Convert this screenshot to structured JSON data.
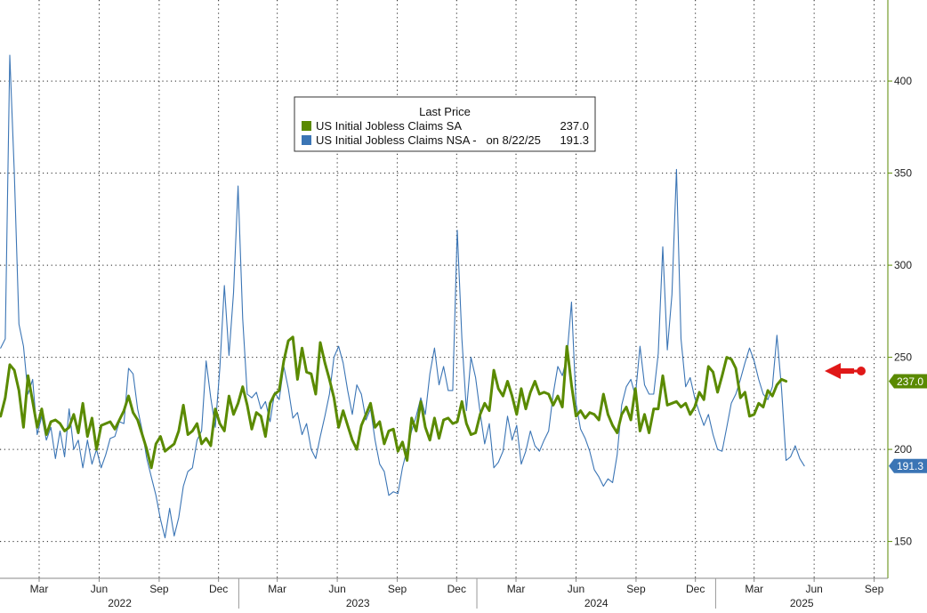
{
  "chart_data": {
    "type": "line",
    "legend": {
      "title": "Last Price",
      "placement": "top-center",
      "entries": [
        {
          "label": "US Initial Jobless Claims SA",
          "value": "237.0"
        },
        {
          "label": "US Initial Jobless Claims NSA -   on 8/22/25",
          "value": "191.3"
        }
      ]
    },
    "y_axis": {
      "position": "right",
      "min": 130,
      "max": 444,
      "ticks": [
        150,
        200,
        250,
        300,
        350,
        400
      ]
    },
    "x_axis": {
      "start": "2021-12-31",
      "end": "2025-09-22",
      "month_ticks": [
        {
          "date": "2022-03-01",
          "label": "Mar"
        },
        {
          "date": "2022-06-01",
          "label": "Jun"
        },
        {
          "date": "2022-09-01",
          "label": "Sep"
        },
        {
          "date": "2022-12-01",
          "label": "Dec"
        },
        {
          "date": "2023-03-01",
          "label": "Mar"
        },
        {
          "date": "2023-06-01",
          "label": "Jun"
        },
        {
          "date": "2023-09-01",
          "label": "Sep"
        },
        {
          "date": "2023-12-01",
          "label": "Dec"
        },
        {
          "date": "2024-03-01",
          "label": "Mar"
        },
        {
          "date": "2024-06-01",
          "label": "Jun"
        },
        {
          "date": "2024-09-01",
          "label": "Sep"
        },
        {
          "date": "2024-12-01",
          "label": "Dec"
        },
        {
          "date": "2025-03-01",
          "label": "Mar"
        },
        {
          "date": "2025-06-01",
          "label": "Jun"
        },
        {
          "date": "2025-09-01",
          "label": "Sep"
        }
      ],
      "years": [
        {
          "label": "2022",
          "from": "2022-01-01",
          "to": "2023-01-01"
        },
        {
          "label": "2023",
          "from": "2023-01-01",
          "to": "2024-01-01"
        },
        {
          "label": "2024",
          "from": "2024-01-01",
          "to": "2025-01-01"
        },
        {
          "label": "2025",
          "from": "2025-01-01",
          "to": "2025-09-22"
        }
      ]
    },
    "grid": true,
    "start_date": "2022-01-01",
    "step_days": 7,
    "series": [
      {
        "name": "US Initial Jobless Claims SA",
        "color": "#5a8a00",
        "last_label": "237.0",
        "values": [
          218,
          228,
          246,
          243,
          232,
          212,
          240,
          226,
          212,
          222,
          208,
          215,
          216,
          214,
          210,
          212,
          219,
          209,
          225,
          207,
          217,
          200,
          213,
          214,
          215,
          211,
          216,
          221,
          229,
          220,
          216,
          208,
          200,
          190,
          203,
          207,
          199,
          201,
          203,
          210,
          224,
          208,
          210,
          214,
          203,
          206,
          202,
          222,
          214,
          210,
          229,
          219,
          225,
          234,
          224,
          211,
          220,
          218,
          207,
          225,
          230,
          232,
          248,
          259,
          261,
          238,
          255,
          242,
          241,
          230,
          258,
          247,
          238,
          228,
          212,
          221,
          213,
          205,
          200,
          213,
          219,
          225,
          212,
          215,
          203,
          210,
          211,
          199,
          204,
          194,
          217,
          210,
          226,
          212,
          205,
          217,
          206,
          216,
          217,
          214,
          215,
          226,
          214,
          208,
          209,
          219,
          225,
          221,
          243,
          233,
          229,
          237,
          229,
          219,
          233,
          222,
          231,
          237,
          230,
          231,
          230,
          224,
          229,
          223,
          256,
          235,
          218,
          221,
          217,
          220,
          219,
          216,
          230,
          219,
          213,
          209,
          219,
          223,
          216,
          233,
          210,
          219,
          209,
          222,
          222,
          240,
          224,
          225,
          226,
          223,
          225,
          219,
          223,
          231,
          227,
          245,
          242,
          231,
          240,
          250,
          249,
          244,
          228,
          231,
          218,
          219,
          225,
          223,
          232,
          229,
          235,
          238,
          237
        ]
      },
      {
        "name": "US Initial Jobless Claims NSA",
        "color": "#3b75b5",
        "last_label": "191.3",
        "values": [
          255,
          260,
          414,
          350,
          268,
          256,
          230,
          238,
          208,
          218,
          205,
          212,
          195,
          210,
          196,
          222,
          200,
          205,
          190,
          205,
          192,
          200,
          190,
          197,
          206,
          207,
          215,
          214,
          244,
          241,
          222,
          210,
          195,
          185,
          175,
          162,
          152,
          168,
          153,
          163,
          180,
          188,
          190,
          205,
          210,
          248,
          228,
          212,
          244,
          289,
          251,
          285,
          343,
          271,
          230,
          228,
          231,
          222,
          226,
          215,
          231,
          227,
          245,
          233,
          217,
          220,
          208,
          214,
          200,
          195,
          207,
          218,
          230,
          250,
          256,
          247,
          232,
          219,
          235,
          230,
          216,
          222,
          205,
          192,
          188,
          175,
          177,
          176,
          190,
          200,
          210,
          218,
          228,
          219,
          241,
          255,
          235,
          245,
          232,
          232,
          319,
          260,
          221,
          250,
          239,
          220,
          203,
          214,
          190,
          193,
          199,
          218,
          205,
          213,
          192,
          199,
          210,
          202,
          199,
          205,
          210,
          230,
          245,
          240,
          250,
          280,
          225,
          211,
          206,
          199,
          189,
          185,
          180,
          184,
          182,
          197,
          224,
          234,
          238,
          229,
          256,
          235,
          230,
          230,
          252,
          310,
          254,
          284,
          352,
          260,
          234,
          239,
          228,
          220,
          213,
          219,
          208,
          200,
          199,
          212,
          225,
          230,
          238,
          247,
          255,
          248,
          238,
          230,
          227,
          234,
          262,
          233,
          194,
          196,
          202,
          195,
          191
        ]
      }
    ],
    "annotation": "red-arrow-marker"
  }
}
